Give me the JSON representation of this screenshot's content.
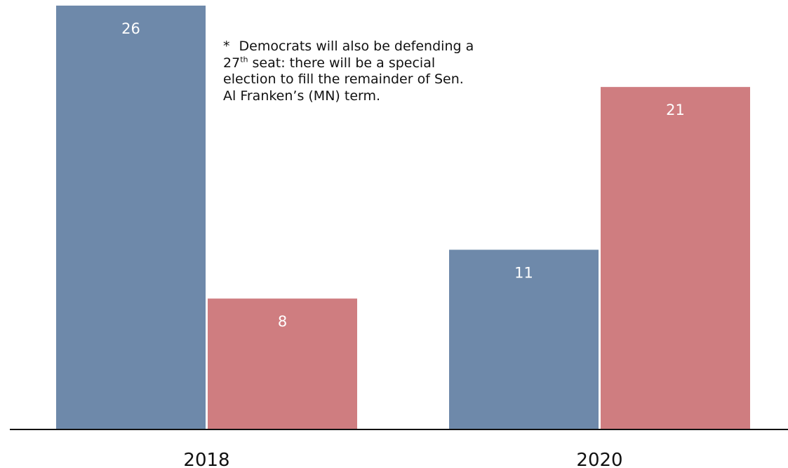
{
  "chart_data": {
    "type": "bar",
    "categories": [
      "2018",
      "2020"
    ],
    "series": [
      {
        "values": [
          26,
          11
        ],
        "color": "#6e89aa"
      },
      {
        "values": [
          8,
          21
        ],
        "color": "#cf7d80"
      }
    ],
    "ylim": [
      0,
      26
    ],
    "grid": false,
    "legend": "none",
    "annotation": {
      "marker": "*",
      "before_sup": "Democrats will also be defending a 27",
      "sup": "th",
      "after_sup": " seat: there will be a special election to fill the remainder of Sen. Al Franken’s (MN) term."
    }
  }
}
